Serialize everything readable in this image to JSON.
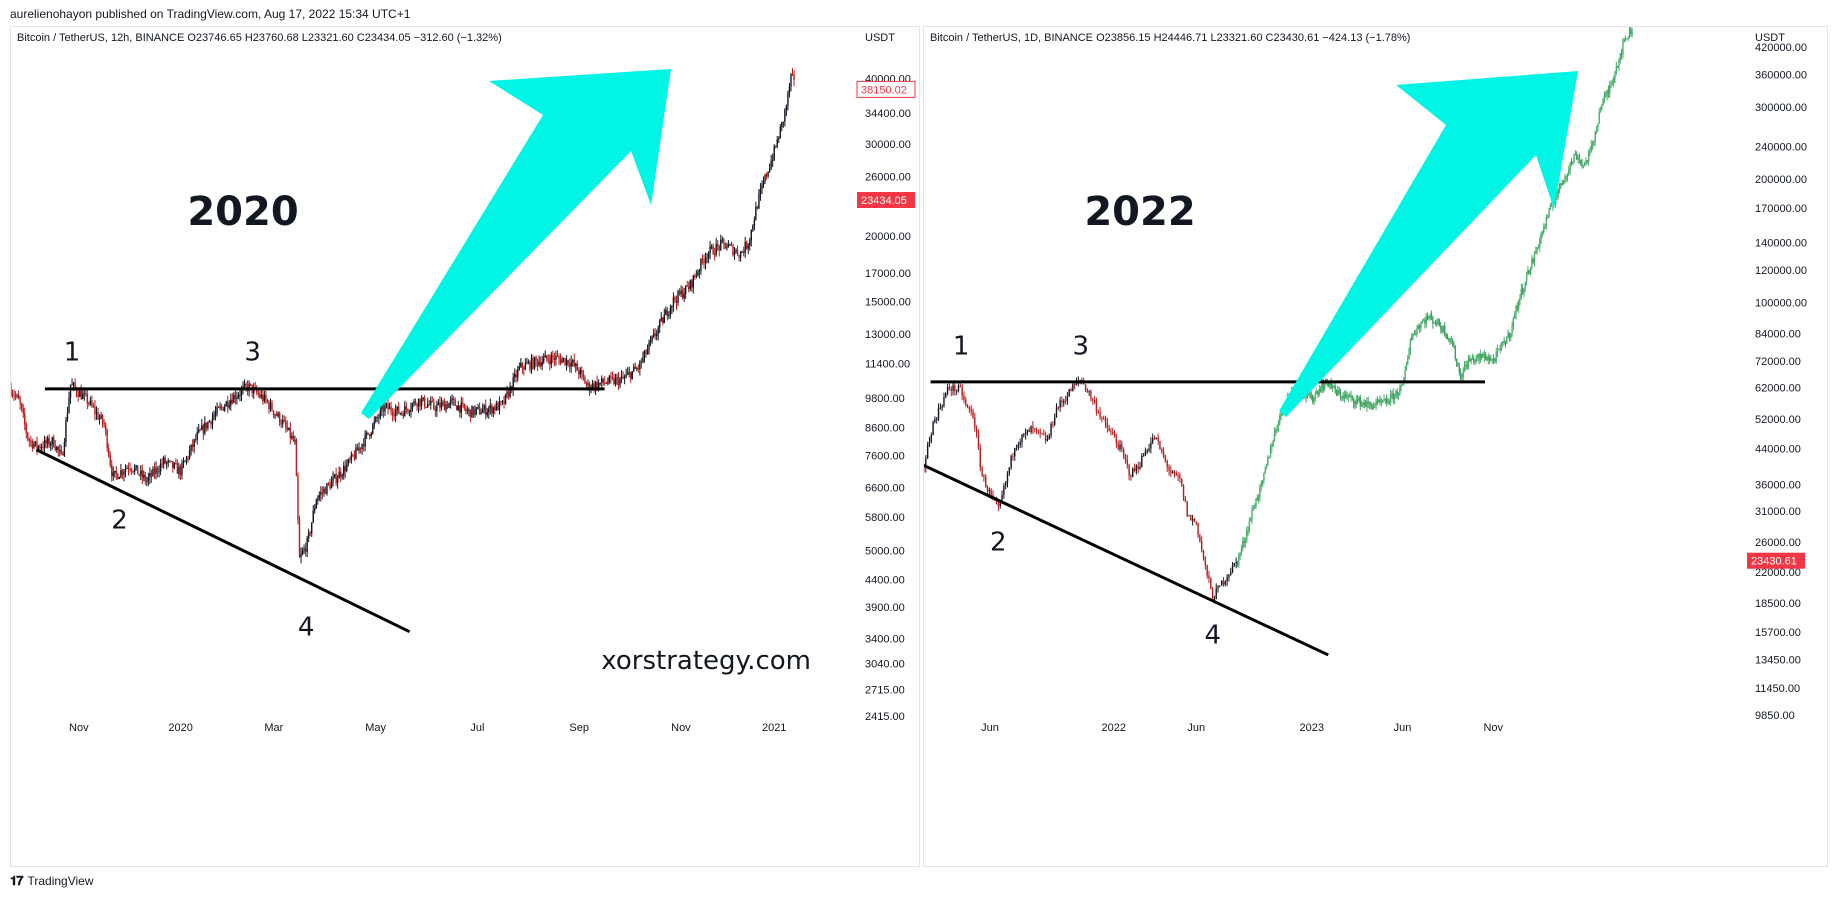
{
  "header": {
    "text": "aurelienohayon published on TradingView.com, Aug 17, 2022 15:34 UTC+1"
  },
  "footer": {
    "logo": "𝟏𝟕",
    "brand": "TradingView"
  },
  "colors": {
    "arrow": "#00f5e4",
    "green_candle": "#4caf6e",
    "red_tag": "#f23645",
    "candle_dark": "#131722",
    "candle_red": "#b71c1c"
  },
  "chart_data": [
    {
      "type": "candlestick",
      "ohlc_label": "Bitcoin / TetherUS, 12h, BINANCE  O23746.65  H23760.68  L23321.60  C23434.05  −312.60 (−1.32%)",
      "currency": "USDT",
      "scale": "log",
      "ylim": [
        2300,
        44000
      ],
      "y_ticks": [
        40000,
        34400,
        30000,
        26000,
        20000,
        17000,
        15000,
        13000,
        11400,
        9800,
        8600,
        7600,
        6600,
        5800,
        5000,
        4400,
        3900,
        3400,
        3040,
        2715,
        2415
      ],
      "y_tick_labels": [
        "40000.00",
        "34400.00",
        "30000.00",
        "26000.00",
        "20000.00",
        "17000.00",
        "15000.00",
        "13000.00",
        "11400.00",
        "9800.00",
        "8600.00",
        "7600.00",
        "6600.00",
        "5800.00",
        "5000.00",
        "4400.00",
        "3900.00",
        "3400.00",
        "3040.00",
        "2715.00",
        "2415.00"
      ],
      "x_ticks": [
        "Nov",
        "2020",
        "Mar",
        "May",
        "Jul",
        "Sep",
        "Nov",
        "2021"
      ],
      "x_tick_pos": [
        0.08,
        0.2,
        0.31,
        0.43,
        0.55,
        0.67,
        0.79,
        0.9
      ],
      "price_tags": [
        {
          "value": 38150.02,
          "label": "38150.02",
          "style": "outline"
        },
        {
          "value": 23434.05,
          "label": "23434.05",
          "style": "filled"
        }
      ],
      "year_label": "2020",
      "points": [
        {
          "label": "1",
          "t": 0.072,
          "value": 10500
        },
        {
          "label": "3",
          "t": 0.285,
          "value": 10500
        },
        {
          "label": "2",
          "t": 0.128,
          "value": 6400
        },
        {
          "label": "4",
          "t": 0.348,
          "value": 4000
        }
      ],
      "resistance": {
        "t0": 0.04,
        "t1": 0.7,
        "value": 10200
      },
      "support": {
        "t0": 0.03,
        "v0": 7800,
        "t1": 0.47,
        "v1": 3500
      },
      "path": [
        [
          0.0,
          10200
        ],
        [
          0.01,
          9600
        ],
        [
          0.02,
          8200
        ],
        [
          0.03,
          7900
        ],
        [
          0.05,
          8100
        ],
        [
          0.06,
          7500
        ],
        [
          0.07,
          10400
        ],
        [
          0.09,
          9700
        ],
        [
          0.11,
          8700
        ],
        [
          0.12,
          6900
        ],
        [
          0.14,
          7300
        ],
        [
          0.16,
          6800
        ],
        [
          0.18,
          7400
        ],
        [
          0.2,
          7100
        ],
        [
          0.22,
          8300
        ],
        [
          0.24,
          9100
        ],
        [
          0.26,
          9800
        ],
        [
          0.28,
          10300
        ],
        [
          0.3,
          9700
        ],
        [
          0.32,
          8800
        ],
        [
          0.335,
          8000
        ],
        [
          0.34,
          4800
        ],
        [
          0.35,
          5200
        ],
        [
          0.36,
          6300
        ],
        [
          0.38,
          6800
        ],
        [
          0.4,
          7400
        ],
        [
          0.42,
          8300
        ],
        [
          0.44,
          9400
        ],
        [
          0.46,
          9200
        ],
        [
          0.48,
          9700
        ],
        [
          0.5,
          9400
        ],
        [
          0.52,
          9600
        ],
        [
          0.54,
          9200
        ],
        [
          0.56,
          9300
        ],
        [
          0.58,
          9500
        ],
        [
          0.6,
          11200
        ],
        [
          0.62,
          11500
        ],
        [
          0.64,
          11700
        ],
        [
          0.66,
          11500
        ],
        [
          0.67,
          11000
        ],
        [
          0.68,
          10300
        ],
        [
          0.7,
          10500
        ],
        [
          0.72,
          10600
        ],
        [
          0.74,
          11200
        ],
        [
          0.76,
          13000
        ],
        [
          0.78,
          15000
        ],
        [
          0.8,
          16000
        ],
        [
          0.82,
          18500
        ],
        [
          0.84,
          19300
        ],
        [
          0.86,
          18500
        ],
        [
          0.87,
          19500
        ],
        [
          0.88,
          23000
        ],
        [
          0.89,
          26000
        ],
        [
          0.9,
          29000
        ],
        [
          0.91,
          33000
        ],
        [
          0.915,
          36000
        ],
        [
          0.92,
          40500
        ],
        [
          0.925,
          38150
        ]
      ]
    },
    {
      "type": "candlestick",
      "ohlc_label": "Bitcoin / TetherUS, 1D, BINANCE  O23856.15  H24446.71  L23321.60  C23430.61  −424.13 (−1.78%)",
      "currency": "USDT",
      "scale": "log",
      "ylim": [
        9000,
        470000
      ],
      "y_ticks": [
        420000,
        360000,
        300000,
        240000,
        200000,
        170000,
        140000,
        120000,
        100000,
        84000,
        72000,
        62000,
        52000,
        44000,
        36000,
        31000,
        26000,
        22000,
        18500,
        15700,
        13450,
        11450,
        9850
      ],
      "y_tick_labels": [
        "420000.00",
        "360000.00",
        "300000.00",
        "240000.00",
        "200000.00",
        "170000.00",
        "140000.00",
        "120000.00",
        "100000.00",
        "84000.00",
        "72000.00",
        "62000.00",
        "52000.00",
        "44000.00",
        "36000.00",
        "31000.00",
        "26000.00",
        "22000.00",
        "18500.00",
        "15700.00",
        "13450.00",
        "11450.00",
        "9850.00"
      ],
      "x_ticks": [
        "Jun",
        "2022",
        "Jun",
        "2023",
        "Jun",
        "Nov"
      ],
      "x_tick_pos": [
        0.08,
        0.23,
        0.33,
        0.47,
        0.58,
        0.69
      ],
      "price_tags": [
        {
          "value": 23430.61,
          "label": "23430.61",
          "style": "filled"
        }
      ],
      "year_label": "2022",
      "points": [
        {
          "label": "1",
          "t": 0.045,
          "value": 66000
        },
        {
          "label": "3",
          "t": 0.19,
          "value": 66000
        },
        {
          "label": "2",
          "t": 0.09,
          "value": 30000
        },
        {
          "label": "4",
          "t": 0.35,
          "value": 17800
        }
      ],
      "resistance": {
        "t0": 0.008,
        "t1": 0.68,
        "value": 64000
      },
      "support": {
        "t0": 0.0,
        "v0": 40000,
        "t1": 0.49,
        "v1": 13800
      },
      "history_path": [
        [
          0.0,
          40000
        ],
        [
          0.01,
          50000
        ],
        [
          0.02,
          56000
        ],
        [
          0.03,
          62000
        ],
        [
          0.045,
          61000
        ],
        [
          0.05,
          56000
        ],
        [
          0.06,
          53000
        ],
        [
          0.07,
          38000
        ],
        [
          0.08,
          34000
        ],
        [
          0.09,
          31000
        ],
        [
          0.1,
          37000
        ],
        [
          0.11,
          45000
        ],
        [
          0.13,
          49000
        ],
        [
          0.15,
          46000
        ],
        [
          0.16,
          55000
        ],
        [
          0.17,
          58000
        ],
        [
          0.18,
          62000
        ],
        [
          0.19,
          65000
        ],
        [
          0.2,
          60000
        ],
        [
          0.21,
          55000
        ],
        [
          0.22,
          50000
        ],
        [
          0.23,
          47000
        ],
        [
          0.24,
          43000
        ],
        [
          0.25,
          38000
        ],
        [
          0.26,
          40000
        ],
        [
          0.27,
          44000
        ],
        [
          0.28,
          47000
        ],
        [
          0.29,
          42000
        ],
        [
          0.3,
          38000
        ],
        [
          0.31,
          37000
        ],
        [
          0.32,
          30000
        ],
        [
          0.33,
          29000
        ],
        [
          0.34,
          23000
        ],
        [
          0.35,
          19000
        ],
        [
          0.36,
          20500
        ],
        [
          0.37,
          22000
        ],
        [
          0.38,
          23400
        ]
      ],
      "projection_path": [
        [
          0.38,
          23400
        ],
        [
          0.39,
          27000
        ],
        [
          0.4,
          32000
        ],
        [
          0.41,
          36000
        ],
        [
          0.42,
          44000
        ],
        [
          0.43,
          52000
        ],
        [
          0.44,
          58000
        ],
        [
          0.45,
          63000
        ],
        [
          0.46,
          60000
        ],
        [
          0.47,
          58000
        ],
        [
          0.48,
          62000
        ],
        [
          0.49,
          64000
        ],
        [
          0.5,
          60000
        ],
        [
          0.52,
          58000
        ],
        [
          0.54,
          56000
        ],
        [
          0.56,
          57000
        ],
        [
          0.58,
          62000
        ],
        [
          0.59,
          82000
        ],
        [
          0.6,
          88000
        ],
        [
          0.61,
          92000
        ],
        [
          0.62,
          90000
        ],
        [
          0.63,
          86000
        ],
        [
          0.64,
          80000
        ],
        [
          0.65,
          66000
        ],
        [
          0.66,
          72000
        ],
        [
          0.68,
          74000
        ],
        [
          0.69,
          72000
        ],
        [
          0.7,
          78000
        ],
        [
          0.71,
          84000
        ],
        [
          0.72,
          100000
        ],
        [
          0.73,
          115000
        ],
        [
          0.74,
          130000
        ],
        [
          0.75,
          150000
        ],
        [
          0.76,
          170000
        ],
        [
          0.77,
          190000
        ],
        [
          0.78,
          210000
        ],
        [
          0.79,
          230000
        ],
        [
          0.8,
          215000
        ],
        [
          0.81,
          240000
        ],
        [
          0.82,
          300000
        ],
        [
          0.83,
          330000
        ],
        [
          0.84,
          380000
        ],
        [
          0.85,
          440000
        ],
        [
          0.86,
          470000
        ]
      ]
    }
  ],
  "watermark": "xorstrategy.com"
}
